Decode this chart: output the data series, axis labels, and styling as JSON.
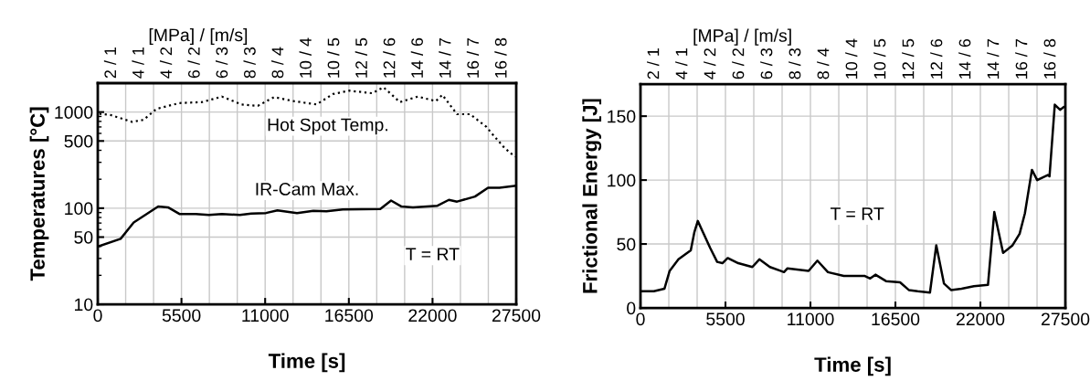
{
  "chart_data": [
    {
      "type": "line",
      "xlabel": "Time [s]",
      "ylabel": "Temperatures [°C]",
      "x2label": "[MPa] / [m/s]",
      "log": "y",
      "grid": true,
      "line_style": "solid",
      "marker": "none",
      "xlim": [
        0,
        27500
      ],
      "xticks": [
        0,
        5500,
        11000,
        16500,
        22000,
        27500
      ],
      "ylim": [
        10,
        2000
      ],
      "yticks": [
        10,
        50,
        100,
        500,
        1000
      ],
      "series": [
        {
          "color": "#000000",
          "line_style": "dotted",
          "x": [
            107,
            859,
            2254,
            3005,
            3863,
            5366,
            6868,
            8156,
            9444,
            10517,
            11590,
            12878,
            14381,
            15454,
            16527,
            18030,
            18781,
            19855,
            21035,
            22216,
            22645,
            23610,
            24469,
            25542,
            25971,
            26722,
            27215,
            27450
          ],
          "values": [
            960,
            930,
            790,
            830,
            1080,
            1240,
            1270,
            1450,
            1200,
            1160,
            1430,
            1300,
            1200,
            1540,
            1670,
            1570,
            1810,
            1270,
            1450,
            1300,
            1510,
            950,
            950,
            700,
            580,
            425,
            365,
            345
          ]
        },
        {
          "color": "#000000",
          "x": [
            30,
            1500,
            2361,
            3970,
            4615,
            5366,
            6439,
            7300,
            8156,
            9337,
            10088,
            11054,
            11805,
            13093,
            14166,
            15025,
            16098,
            18567,
            19275,
            19962,
            20713,
            22323,
            23074,
            23610,
            24790,
            25649,
            26400,
            27450
          ],
          "values": [
            40,
            48,
            71,
            104,
            102,
            87,
            87,
            85,
            87,
            85,
            88,
            89,
            95,
            89,
            94,
            93,
            97,
            98,
            120,
            104,
            102,
            106,
            122,
            117,
            132,
            163,
            163,
            171
          ]
        }
      ],
      "annotations": [
        "2 / 1",
        "4 / 1",
        "4 / 2",
        "6 / 2",
        "6 / 3",
        "8 / 3",
        "8 / 4",
        "10 / 4",
        "10 / 5",
        "12 / 5",
        "12 / 6",
        "14 / 6",
        "14 / 7",
        "16 / 7",
        "16 / 8",
        "Hot Spot Temp.",
        "IR-Cam Max.",
        "T = RT"
      ]
    },
    {
      "type": "line",
      "xlabel": "Time [s]",
      "ylabel": "Frictional Energy [J]",
      "x2label": "[MPa] / [m/s]",
      "grid": true,
      "line_style": "solid",
      "marker": "none",
      "xlim": [
        0,
        27500
      ],
      "xticks": [
        0,
        5500,
        11000,
        16500,
        22000,
        27500
      ],
      "ylim": [
        0,
        175
      ],
      "yticks": [
        0,
        50,
        100,
        150
      ],
      "series": [
        {
          "color": "#000000",
          "x": [
            68,
            865,
            1548,
            1889,
            2458,
            3255,
            3483,
            3710,
            4052,
            4507,
            4963,
            5304,
            5645,
            6328,
            7239,
            7694,
            8377,
            9060,
            9288,
            9515,
            10881,
            11450,
            12133,
            13157,
            14524,
            14865,
            15207,
            15890,
            16800,
            17369,
            17938,
            18735,
            19145,
            19645,
            20100,
            20783,
            21580,
            22491,
            22900,
            23470,
            24084,
            24539,
            24881,
            25336,
            25677,
            26360,
            26474,
            26815,
            27156,
            27384
          ],
          "values": [
            13,
            13,
            15,
            29,
            38,
            45,
            59,
            68,
            59,
            47,
            36,
            35,
            39,
            35,
            32,
            38,
            32,
            29,
            28,
            31,
            29,
            37,
            28,
            25,
            25,
            23,
            26,
            21,
            20,
            14,
            13,
            12,
            49,
            19,
            14,
            15,
            17,
            18,
            75,
            43,
            49,
            58,
            74,
            108,
            100,
            104,
            103,
            159,
            155,
            157
          ]
        }
      ],
      "annotations": [
        "2 / 1",
        "4 / 1",
        "4 / 2",
        "6 / 2",
        "6 / 3",
        "8 / 3",
        "8 / 4",
        "10 / 4",
        "10 / 5",
        "12 / 5",
        "12 / 6",
        "14 / 6",
        "14 / 7",
        "16 / 7",
        "16 / 8",
        "T = RT"
      ]
    }
  ]
}
